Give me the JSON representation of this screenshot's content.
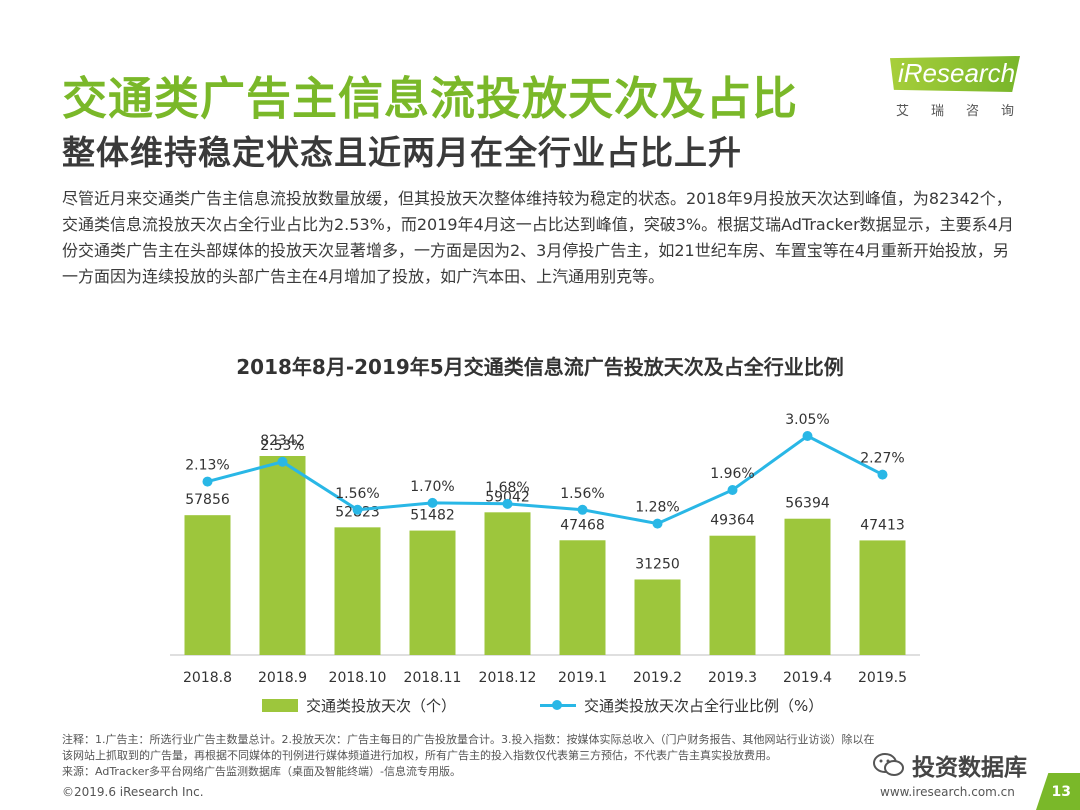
{
  "header": {
    "title": "交通类广告主信息流投放天次及占比",
    "subtitle": "整体维持稳定状态且近两月在全行业占比上升"
  },
  "logo": {
    "name": "iResearch",
    "cn": "艾瑞咨询"
  },
  "body": {
    "paragraph": "尽管近月来交通类广告主信息流投放数量放缓，但其投放天次整体维持较为稳定的状态。2018年9月投放天次达到峰值，为82342个，交通类信息流投放天次占全行业占比为2.53%，而2019年4月这一占比达到峰值，突破3%。根据艾瑞AdTracker数据显示，主要系4月份交通类广告主在头部媒体的投放天次显著增多，一方面是因为2、3月停投广告主，如21世纪车房、车置宝等在4月重新开始投放，另一方面因为连续投放的头部广告主在4月增加了投放，如广汽本田、上汽通用别克等。"
  },
  "chart_data": {
    "type": "bar",
    "title": "2018年8月-2019年5月交通类信息流广告投放天次及占全行业比例",
    "categories": [
      "2018.8",
      "2018.9",
      "2018.10",
      "2018.11",
      "2018.12",
      "2019.1",
      "2019.2",
      "2019.3",
      "2019.4",
      "2019.5"
    ],
    "series": [
      {
        "name": "交通类投放天次（个）",
        "kind": "bar",
        "values": [
          57856,
          82342,
          52823,
          51482,
          59042,
          47468,
          31250,
          49364,
          56394,
          47413
        ]
      },
      {
        "name": "交通类投放天次占全行业比例（%）",
        "kind": "line",
        "values": [
          2.13,
          2.53,
          1.56,
          1.7,
          1.68,
          1.56,
          1.28,
          1.96,
          3.05,
          2.27
        ],
        "labels": [
          "2.13%",
          "2.53%",
          "1.56%",
          "1.70%",
          "1.68%",
          "1.56%",
          "1.28%",
          "1.96%",
          "3.05%",
          "2.27%"
        ]
      }
    ],
    "colors": {
      "bar": "#9dc63c",
      "line": "#29b7e6"
    },
    "grid": false,
    "legend_position": "bottom"
  },
  "notes": {
    "line1": "注释：1.广告主：所选行业广告主数量总计。2.投放天次：广告主每日的广告投放量合计。3.投入指数：按媒体实际总收入（门户财务报告、其他网站行业访谈）除以在该网站上抓取到的广告量，再根据不同媒体的刊例进行媒体频道进行加权，所有广告主的投入指数仅代表第三方预估，不代表广告主真实投放费用。",
    "line2": "来源：AdTracker多平台网络广告监测数据库（桌面及智能终端）-信息流专用版。"
  },
  "footer": {
    "copyright": "©2019.6 iResearch Inc.",
    "url": "www.iresearch.com.cn",
    "page": "13",
    "watermark": "投资数据库"
  }
}
